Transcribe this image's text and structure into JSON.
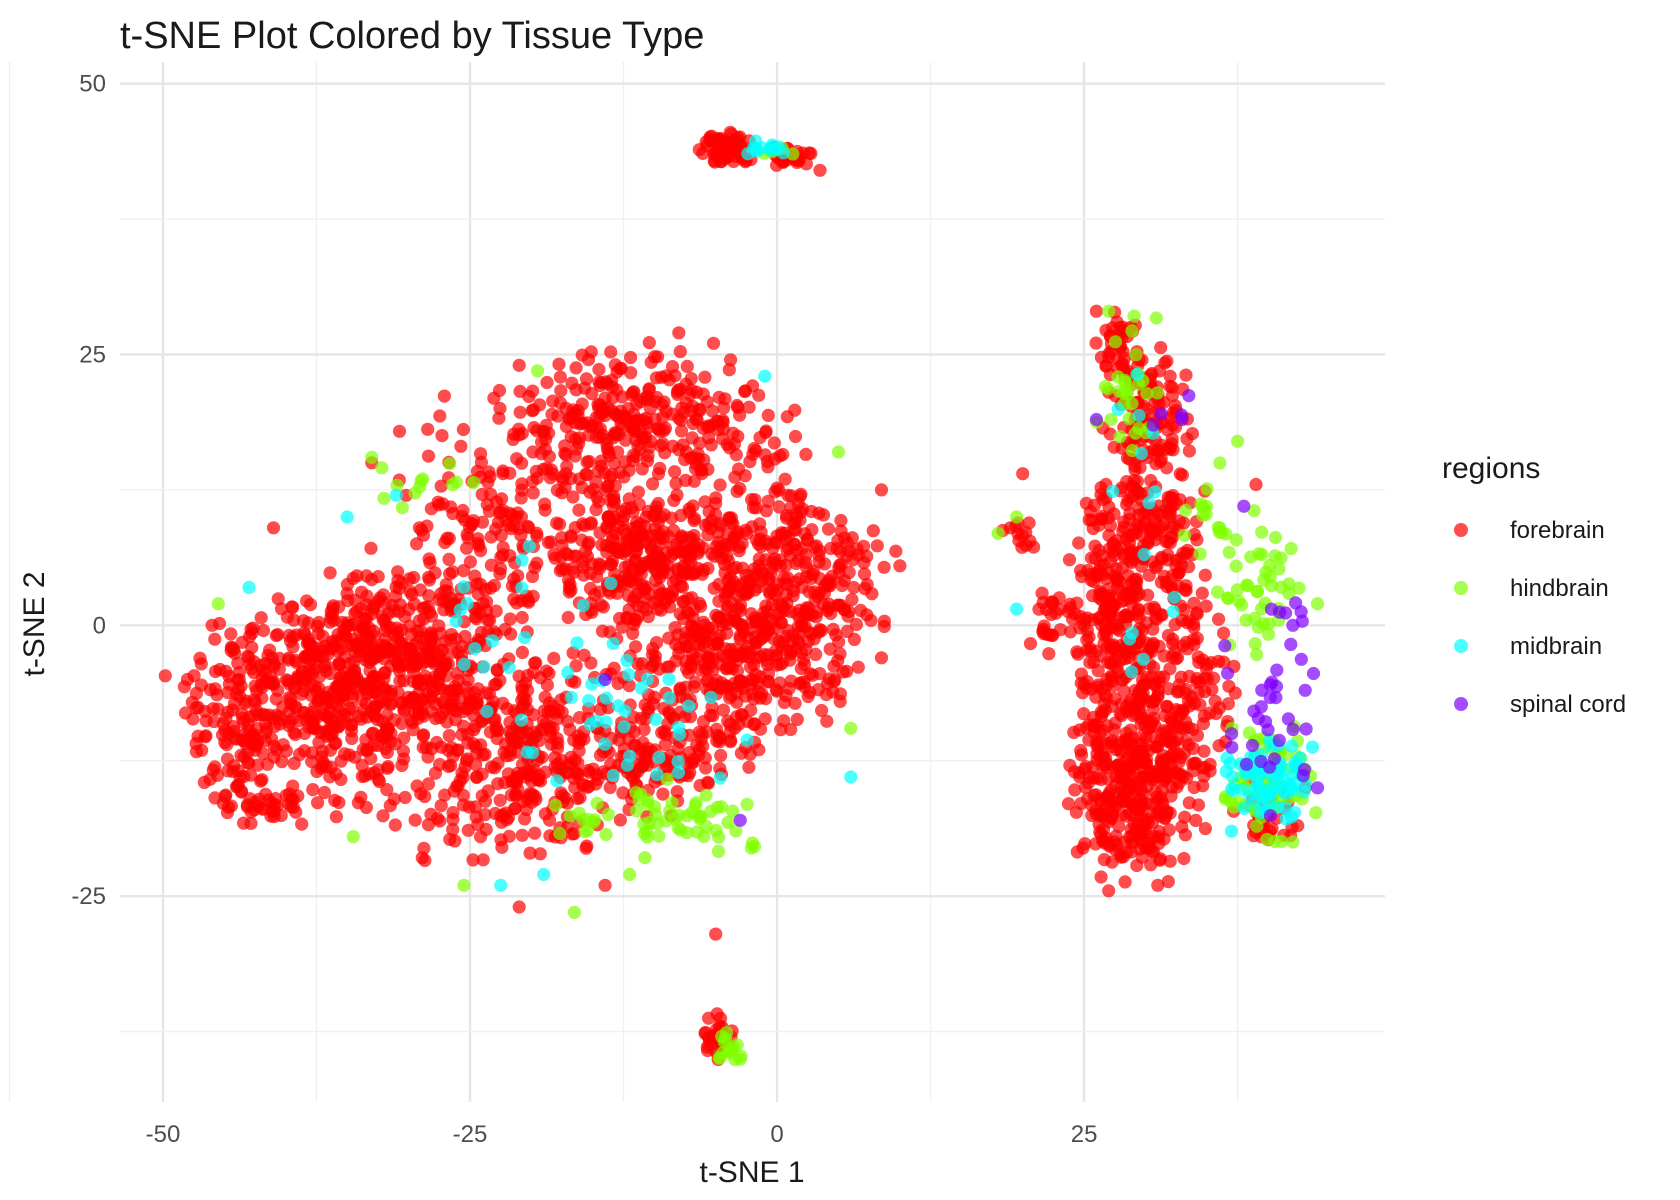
{
  "chart_data": {
    "type": "scatter",
    "title": "t-SNE Plot Colored by Tissue Type",
    "xlabel": "t-SNE 1",
    "ylabel": "t-SNE 2",
    "xlim": [
      -53.5,
      49.5
    ],
    "ylim": [
      -44,
      52
    ],
    "x_ticks": [
      -50,
      -25,
      0,
      25
    ],
    "x_tick_labels": [
      "-50",
      "-25",
      "0",
      "25"
    ],
    "y_ticks": [
      50,
      25,
      0,
      -25
    ],
    "y_tick_labels": [
      "50",
      "25",
      "0",
      "-25"
    ],
    "grid": true,
    "legend": {
      "title": "regions",
      "position": "right",
      "entries": [
        "forebrain",
        "hindbrain",
        "midbrain",
        "spinal cord"
      ]
    },
    "colors": {
      "forebrain": "#ff0000",
      "hindbrain": "#80ff00",
      "midbrain": "#00ffff",
      "spinal cord": "#8000ff"
    },
    "clusters": [
      {
        "series": "forebrain",
        "cx": -33,
        "cy": -3,
        "rx": 9,
        "ry": 8,
        "n": 380
      },
      {
        "series": "forebrain",
        "cx": -38,
        "cy": -8,
        "rx": 10,
        "ry": 9,
        "n": 260
      },
      {
        "series": "forebrain",
        "cx": -44,
        "cy": -9,
        "rx": 4,
        "ry": 6,
        "n": 70
      },
      {
        "series": "forebrain",
        "cx": -42,
        "cy": -16,
        "rx": 3,
        "ry": 2.5,
        "n": 40
      },
      {
        "series": "forebrain",
        "cx": -26,
        "cy": -5,
        "rx": 8,
        "ry": 11,
        "n": 200
      },
      {
        "series": "forebrain",
        "cx": -19,
        "cy": -12,
        "rx": 7,
        "ry": 8,
        "n": 230
      },
      {
        "series": "forebrain",
        "cx": -22,
        "cy": 10,
        "rx": 9,
        "ry": 10,
        "n": 180
      },
      {
        "series": "forebrain",
        "cx": -14,
        "cy": 18,
        "rx": 7,
        "ry": 7,
        "n": 170
      },
      {
        "series": "forebrain",
        "cx": -12,
        "cy": 6,
        "rx": 6,
        "ry": 6,
        "n": 200
      },
      {
        "series": "forebrain",
        "cx": -3,
        "cy": 4,
        "rx": 10,
        "ry": 13,
        "n": 440
      },
      {
        "series": "forebrain",
        "cx": -4,
        "cy": -5,
        "rx": 8,
        "ry": 8,
        "n": 220
      },
      {
        "series": "forebrain",
        "cx": -8,
        "cy": 20,
        "rx": 8,
        "ry": 5,
        "n": 120
      },
      {
        "series": "forebrain",
        "cx": 4,
        "cy": 3,
        "rx": 5,
        "ry": 8,
        "n": 90
      },
      {
        "series": "forebrain",
        "cx": -10,
        "cy": -12,
        "rx": 6,
        "ry": 5,
        "n": 90
      },
      {
        "series": "forebrain",
        "cx": -25,
        "cy": -18,
        "rx": 8,
        "ry": 4,
        "n": 50
      },
      {
        "series": "forebrain",
        "cx": 29,
        "cy": -15,
        "rx": 4.5,
        "ry": 8,
        "n": 320
      },
      {
        "series": "forebrain",
        "cx": 28,
        "cy": -5,
        "rx": 4,
        "ry": 8,
        "n": 160
      },
      {
        "series": "forebrain",
        "cx": 28,
        "cy": 5,
        "rx": 3.5,
        "ry": 9,
        "n": 190
      },
      {
        "series": "forebrain",
        "cx": 32,
        "cy": 8,
        "rx": 3,
        "ry": 9,
        "n": 110
      },
      {
        "series": "forebrain",
        "cx": 30,
        "cy": 20,
        "rx": 3,
        "ry": 5,
        "n": 110
      },
      {
        "series": "forebrain",
        "cx": 28,
        "cy": 26,
        "rx": 2,
        "ry": 3,
        "n": 40
      },
      {
        "series": "forebrain",
        "cx": 34,
        "cy": -6,
        "rx": 3,
        "ry": 9,
        "n": 100
      },
      {
        "series": "forebrain",
        "cx": 23,
        "cy": 0,
        "rx": 2.5,
        "ry": 4,
        "n": 30
      },
      {
        "series": "forebrain",
        "cx": 20,
        "cy": 8,
        "rx": 1.5,
        "ry": 1.5,
        "n": 12
      },
      {
        "series": "forebrain",
        "cx": 40,
        "cy": -17,
        "rx": 3,
        "ry": 3,
        "n": 40
      },
      {
        "series": "forebrain",
        "cx": -4,
        "cy": 44,
        "rx": 2,
        "ry": 1.3,
        "n": 70
      },
      {
        "series": "forebrain",
        "cx": 1,
        "cy": 43.3,
        "rx": 2,
        "ry": 0.8,
        "n": 30
      },
      {
        "series": "forebrain",
        "cx": -5,
        "cy": -38,
        "rx": 1.3,
        "ry": 1.8,
        "n": 35
      },
      {
        "series": "hindbrain",
        "cx": -29,
        "cy": 13,
        "rx": 6,
        "ry": 2,
        "n": 12
      },
      {
        "series": "hindbrain",
        "cx": -7,
        "cy": -18,
        "rx": 6,
        "ry": 3.5,
        "n": 50
      },
      {
        "series": "hindbrain",
        "cx": -16,
        "cy": -18,
        "rx": 3,
        "ry": 2,
        "n": 12
      },
      {
        "series": "hindbrain",
        "cx": 29,
        "cy": 22,
        "rx": 3,
        "ry": 6,
        "n": 30
      },
      {
        "series": "hindbrain",
        "cx": 39,
        "cy": 3,
        "rx": 3,
        "ry": 6,
        "n": 45
      },
      {
        "series": "hindbrain",
        "cx": 40,
        "cy": -14,
        "rx": 4,
        "ry": 5,
        "n": 70
      },
      {
        "series": "hindbrain",
        "cx": 35,
        "cy": 10,
        "rx": 2,
        "ry": 5,
        "n": 15
      },
      {
        "series": "hindbrain",
        "cx": -4,
        "cy": -39,
        "rx": 1.3,
        "ry": 1.3,
        "n": 15
      },
      {
        "series": "hindbrain",
        "cx": 0,
        "cy": 43.5,
        "rx": 1.5,
        "ry": 0.8,
        "n": 6
      },
      {
        "series": "midbrain",
        "cx": -12,
        "cy": -10,
        "rx": 8,
        "ry": 6,
        "n": 35
      },
      {
        "series": "midbrain",
        "cx": -22,
        "cy": -2,
        "rx": 8,
        "ry": 9,
        "n": 20
      },
      {
        "series": "midbrain",
        "cx": 40,
        "cy": -14,
        "rx": 3.5,
        "ry": 4,
        "n": 70
      },
      {
        "series": "midbrain",
        "cx": 30,
        "cy": 10,
        "rx": 3,
        "ry": 12,
        "n": 15
      },
      {
        "series": "midbrain",
        "cx": -1,
        "cy": 44,
        "rx": 2,
        "ry": 0.8,
        "n": 12
      },
      {
        "series": "spinal cord",
        "cx": 40,
        "cy": -8,
        "rx": 4,
        "ry": 8,
        "n": 30
      },
      {
        "series": "spinal cord",
        "cx": 32,
        "cy": 21,
        "rx": 2,
        "ry": 3,
        "n": 5
      },
      {
        "series": "spinal cord",
        "cx": 41,
        "cy": 2,
        "rx": 2,
        "ry": 3,
        "n": 6
      }
    ],
    "points": [
      {
        "series": "forebrain",
        "x": 10,
        "y": 5.5
      },
      {
        "series": "forebrain",
        "x": 8.5,
        "y": 12.5
      },
      {
        "series": "forebrain",
        "x": -48,
        "y": -5
      },
      {
        "series": "forebrain",
        "x": -46,
        "y": 0
      },
      {
        "series": "forebrain",
        "x": -5,
        "y": -28.5
      },
      {
        "series": "forebrain",
        "x": -21,
        "y": -26
      },
      {
        "series": "forebrain",
        "x": -21,
        "y": 24
      },
      {
        "series": "forebrain",
        "x": -8,
        "y": 27
      },
      {
        "series": "forebrain",
        "x": 3.5,
        "y": 42
      },
      {
        "series": "forebrain",
        "x": 19,
        "y": 9
      },
      {
        "series": "forebrain",
        "x": 20,
        "y": 14
      },
      {
        "series": "forebrain",
        "x": 39,
        "y": 13
      },
      {
        "series": "forebrain",
        "x": 27,
        "y": -24.5
      },
      {
        "series": "forebrain",
        "x": 31,
        "y": -24
      },
      {
        "series": "forebrain",
        "x": 43,
        "y": -15
      },
      {
        "series": "forebrain",
        "x": 8.5,
        "y": -3
      },
      {
        "series": "forebrain",
        "x": -33,
        "y": 15
      },
      {
        "series": "forebrain",
        "x": -41,
        "y": 9
      },
      {
        "series": "forebrain",
        "x": -14,
        "y": -24
      },
      {
        "series": "forebrain",
        "x": 26,
        "y": 29
      },
      {
        "series": "forebrain",
        "x": 32,
        "y": 23
      },
      {
        "series": "hindbrain",
        "x": -16.5,
        "y": -26.5
      },
      {
        "series": "hindbrain",
        "x": -25.5,
        "y": -24
      },
      {
        "series": "hindbrain",
        "x": -34.5,
        "y": -19.5
      },
      {
        "series": "hindbrain",
        "x": -19.5,
        "y": 23.5
      },
      {
        "series": "hindbrain",
        "x": 6,
        "y": -9.5
      },
      {
        "series": "hindbrain",
        "x": -45.5,
        "y": 2
      },
      {
        "series": "hindbrain",
        "x": 18,
        "y": 8.5
      },
      {
        "series": "hindbrain",
        "x": 19.5,
        "y": 10
      },
      {
        "series": "hindbrain",
        "x": 5,
        "y": 16
      },
      {
        "series": "hindbrain",
        "x": 37.5,
        "y": 17
      },
      {
        "series": "hindbrain",
        "x": 27,
        "y": 29
      },
      {
        "series": "hindbrain",
        "x": 44,
        "y": 2
      },
      {
        "series": "hindbrain",
        "x": 42,
        "y": -20
      },
      {
        "series": "hindbrain",
        "x": -33,
        "y": 15.5
      },
      {
        "series": "hindbrain",
        "x": -12,
        "y": -23
      },
      {
        "series": "midbrain",
        "x": -43,
        "y": 3.5
      },
      {
        "series": "midbrain",
        "x": -22.5,
        "y": -24
      },
      {
        "series": "midbrain",
        "x": -1,
        "y": 23
      },
      {
        "series": "midbrain",
        "x": 6,
        "y": -14
      },
      {
        "series": "midbrain",
        "x": 19.5,
        "y": 1.5
      },
      {
        "series": "midbrain",
        "x": 37,
        "y": -19
      },
      {
        "series": "midbrain",
        "x": -19,
        "y": -23
      },
      {
        "series": "midbrain",
        "x": -35,
        "y": 10
      },
      {
        "series": "midbrain",
        "x": -31,
        "y": 12
      },
      {
        "series": "spinal cord",
        "x": -14,
        "y": -5
      },
      {
        "series": "spinal cord",
        "x": 44,
        "y": -15
      },
      {
        "series": "spinal cord",
        "x": 43,
        "y": -6
      },
      {
        "series": "spinal cord",
        "x": 26,
        "y": 19
      },
      {
        "series": "spinal cord",
        "x": 38,
        "y": 11
      },
      {
        "series": "spinal cord",
        "x": 37,
        "y": -10
      },
      {
        "series": "spinal cord",
        "x": 42,
        "y": 0
      },
      {
        "series": "spinal cord",
        "x": -3,
        "y": -18
      }
    ]
  }
}
